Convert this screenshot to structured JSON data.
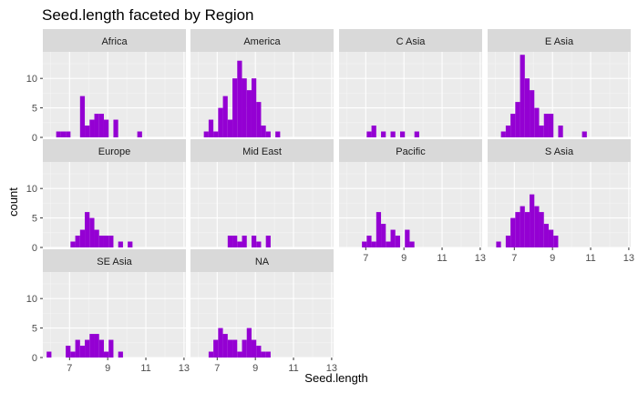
{
  "chart_data": {
    "type": "histogram-facets",
    "title": "Seed.length faceted by Region",
    "xlabel": "Seed.length",
    "ylabel": "count",
    "xlim": [
      5.6,
      13.1
    ],
    "ylim": [
      0,
      14.5
    ],
    "x_ticks": [
      7,
      9,
      11,
      13
    ],
    "y_ticks": [
      0,
      5,
      10
    ],
    "bin_start": 5.8,
    "bin_width": 0.25,
    "grid": true,
    "bar_color": "#9400D3",
    "panel_bg": "#EBEBEB",
    "strip_bg": "#D9D9D9",
    "facets": [
      {
        "label": "Africa",
        "bins": {
          "6.3": 1,
          "6.55": 1,
          "6.8": 1,
          "7.55": 7,
          "7.8": 2,
          "8.05": 3,
          "8.3": 4,
          "8.55": 4,
          "8.8": 3,
          "9.3": 3,
          "10.55": 1
        }
      },
      {
        "label": "America",
        "bins": {
          "6.3": 1,
          "6.55": 3,
          "6.8": 1,
          "7.05": 5,
          "7.3": 7,
          "7.55": 3,
          "7.8": 10,
          "8.05": 13,
          "8.3": 10,
          "8.55": 8,
          "8.8": 10,
          "9.05": 6,
          "9.3": 2,
          "9.55": 1,
          "10.05": 1
        }
      },
      {
        "label": "C Asia",
        "bins": {
          "7.05": 1,
          "7.3": 2,
          "7.8": 1,
          "8.3": 1,
          "8.8": 1,
          "9.55": 1
        }
      },
      {
        "label": "E Asia",
        "bins": {
          "6.3": 1,
          "6.55": 2,
          "6.8": 4,
          "7.05": 6,
          "7.3": 14,
          "7.55": 10,
          "7.8": 8,
          "8.05": 5,
          "8.3": 2,
          "8.55": 4,
          "8.8": 4,
          "9.3": 2,
          "10.55": 1
        }
      },
      {
        "label": "Europe",
        "bins": {
          "7.05": 1,
          "7.3": 2,
          "7.55": 3,
          "7.8": 6,
          "8.05": 5,
          "8.3": 3,
          "8.55": 2,
          "8.8": 2,
          "9.05": 2,
          "9.55": 1,
          "10.05": 1
        }
      },
      {
        "label": "Mid East",
        "bins": {
          "7.55": 2,
          "7.8": 2,
          "8.05": 1,
          "8.3": 2,
          "8.8": 2,
          "9.05": 1,
          "9.55": 2
        }
      },
      {
        "label": "Pacific",
        "bins": {
          "6.8": 1,
          "7.05": 2,
          "7.3": 1,
          "7.55": 6,
          "7.8": 4,
          "8.05": 1,
          "8.3": 3,
          "8.55": 2,
          "9.05": 3,
          "9.3": 1
        }
      },
      {
        "label": "S Asia",
        "bins": {
          "6.05": 1,
          "6.55": 2,
          "6.8": 5,
          "7.05": 6,
          "7.3": 7,
          "7.55": 6,
          "7.8": 9,
          "8.05": 7,
          "8.3": 6,
          "8.55": 4,
          "8.8": 3,
          "9.05": 2
        }
      },
      {
        "label": "SE Asia",
        "bins": {
          "5.8": 1,
          "6.8": 2,
          "7.05": 1,
          "7.3": 3,
          "7.55": 2,
          "7.8": 3,
          "8.05": 4,
          "8.3": 4,
          "8.55": 3,
          "8.8": 1,
          "9.05": 3,
          "9.55": 1
        }
      },
      {
        "label": "NA",
        "bins": {
          "6.55": 1,
          "6.8": 3,
          "7.05": 5,
          "7.3": 4,
          "7.55": 3,
          "7.8": 3,
          "8.05": 1,
          "8.3": 3,
          "8.55": 5,
          "8.8": 3,
          "9.05": 2,
          "9.3": 1,
          "9.55": 1
        }
      }
    ]
  }
}
